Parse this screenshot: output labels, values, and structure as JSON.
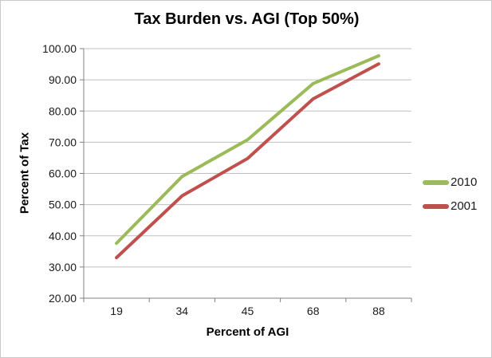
{
  "chart_data": {
    "type": "line",
    "title": "Tax Burden vs. AGI (Top 50%)",
    "xlabel": "Percent of AGI",
    "ylabel": "Percent of Tax",
    "categories": [
      "19",
      "34",
      "45",
      "68",
      "88"
    ],
    "series": [
      {
        "name": "2010",
        "color": "#9BBB59",
        "values": [
          37.6,
          59.0,
          70.8,
          88.8,
          97.7
        ]
      },
      {
        "name": "2001",
        "color": "#C0504D",
        "values": [
          33.0,
          52.8,
          64.8,
          83.9,
          95.1
        ]
      }
    ],
    "ylim": [
      20,
      100
    ],
    "y_tick_step": 10,
    "y_tick_labels": [
      "20.00",
      "30.00",
      "40.00",
      "50.00",
      "60.00",
      "70.00",
      "80.00",
      "90.00",
      "100.00"
    ],
    "grid": true,
    "legend_position": "right",
    "colors": {
      "axis": "#808080",
      "gridline": "#BFBFBF",
      "text": "#1a1a1a",
      "background": "#FFFFFF",
      "frame_border": "#C9C9C9"
    }
  }
}
